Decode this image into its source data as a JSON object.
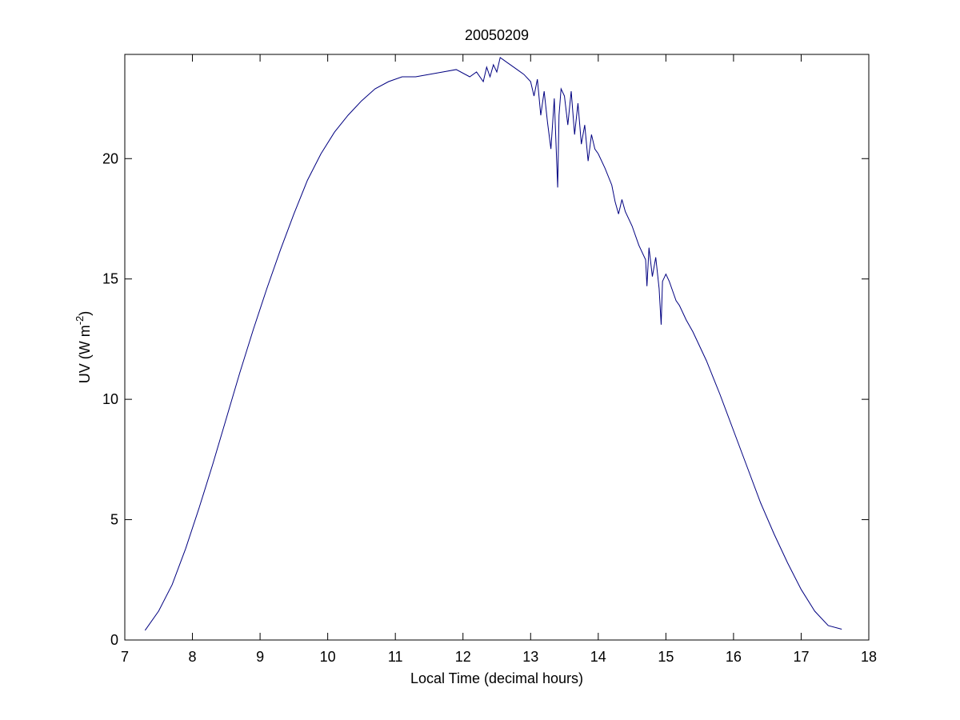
{
  "chart_data": {
    "type": "line",
    "title": "20050209",
    "xlabel": "Local Time (decimal hours)",
    "ylabel": {
      "text": "UV (W m",
      "superscript": "-2",
      "suffix": ")"
    },
    "xlim": [
      7,
      18
    ],
    "ylim": [
      0,
      24.33
    ],
    "xticks": [
      "7",
      "8",
      "9",
      "10",
      "11",
      "12",
      "13",
      "14",
      "15",
      "16",
      "17",
      "18"
    ],
    "yticks": [
      "0",
      "5",
      "10",
      "15",
      "20"
    ],
    "grid": false,
    "line_color": "#000080",
    "series": [
      {
        "x": [
          7.3,
          7.5,
          7.7,
          7.9,
          8.1,
          8.3,
          8.5,
          8.7,
          8.9,
          9.1,
          9.3,
          9.5,
          9.7,
          9.9,
          10.1,
          10.3,
          10.5,
          10.7,
          10.9,
          11.1,
          11.3,
          11.5,
          11.7,
          11.9,
          12.1,
          12.2,
          12.3,
          12.35,
          12.4,
          12.45,
          12.5,
          12.55,
          12.6,
          12.7,
          12.8,
          12.9,
          13.0,
          13.05,
          13.1,
          13.15,
          13.2,
          13.25,
          13.3,
          13.35,
          13.4,
          13.42,
          13.45,
          13.5,
          13.55,
          13.6,
          13.65,
          13.7,
          13.75,
          13.8,
          13.85,
          13.9,
          13.95,
          14.0,
          14.1,
          14.2,
          14.25,
          14.3,
          14.35,
          14.4,
          14.5,
          14.6,
          14.7,
          14.72,
          14.75,
          14.8,
          14.85,
          14.9,
          14.93,
          14.95,
          15.0,
          15.05,
          15.1,
          15.15,
          15.2,
          15.3,
          15.4,
          15.6,
          15.8,
          16.0,
          16.2,
          16.4,
          16.6,
          16.8,
          17.0,
          17.2,
          17.4,
          17.6
        ],
        "y": [
          0.4,
          1.2,
          2.3,
          3.8,
          5.5,
          7.3,
          9.2,
          11.1,
          12.9,
          14.6,
          16.2,
          17.7,
          19.1,
          20.2,
          21.1,
          21.8,
          22.4,
          22.9,
          23.2,
          23.4,
          23.4,
          23.5,
          23.6,
          23.7,
          23.4,
          23.6,
          23.2,
          23.8,
          23.4,
          23.9,
          23.6,
          24.2,
          24.1,
          23.9,
          23.7,
          23.5,
          23.2,
          22.6,
          23.3,
          21.8,
          22.8,
          21.5,
          20.4,
          22.5,
          18.8,
          21.8,
          22.9,
          22.6,
          21.4,
          22.8,
          21.0,
          22.3,
          20.6,
          21.4,
          19.9,
          21.0,
          20.4,
          20.2,
          19.6,
          18.9,
          18.2,
          17.7,
          18.3,
          17.8,
          17.2,
          16.4,
          15.8,
          14.7,
          16.3,
          15.1,
          15.9,
          14.6,
          13.1,
          14.9,
          15.2,
          14.9,
          14.5,
          14.1,
          13.9,
          13.3,
          12.8,
          11.6,
          10.2,
          8.7,
          7.2,
          5.7,
          4.4,
          3.2,
          2.1,
          1.2,
          0.6,
          0.45
        ]
      }
    ]
  }
}
